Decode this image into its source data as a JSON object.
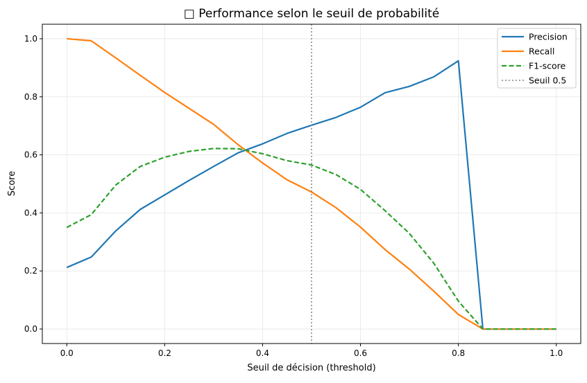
{
  "chart_data": {
    "type": "line",
    "title": "□ Performance selon le seuil de probabilité",
    "xlabel": "Seuil de décision (threshold)",
    "ylabel": "Score",
    "xlim": [
      -0.05,
      1.05
    ],
    "ylim": [
      -0.05,
      1.05
    ],
    "xticks": [
      "0.0",
      "0.2",
      "0.4",
      "0.6",
      "0.8",
      "1.0"
    ],
    "yticks": [
      "0.0",
      "0.2",
      "0.4",
      "0.6",
      "0.8",
      "1.0"
    ],
    "grid": true,
    "legend_position": "top-right",
    "x": [
      0,
      0.05,
      0.1,
      0.15,
      0.2,
      0.25,
      0.3,
      0.35,
      0.4,
      0.45,
      0.5,
      0.55,
      0.6,
      0.65,
      0.7,
      0.75,
      0.8,
      0.85,
      0.9,
      0.95,
      1.0
    ],
    "series": [
      {
        "name": "Precision",
        "color": "#1f77b4",
        "style": "solid",
        "values": [
          0.212,
          0.248,
          0.338,
          0.412,
          0.462,
          0.512,
          0.56,
          0.607,
          0.638,
          0.674,
          0.702,
          0.729,
          0.764,
          0.814,
          0.836,
          0.869,
          0.924,
          0,
          0,
          0,
          0
        ]
      },
      {
        "name": "Recall",
        "color": "#ff7f0e",
        "style": "solid",
        "values": [
          1.0,
          0.993,
          0.934,
          0.874,
          0.815,
          0.76,
          0.705,
          0.635,
          0.572,
          0.514,
          0.472,
          0.418,
          0.351,
          0.274,
          0.206,
          0.13,
          0.05,
          0,
          0,
          0,
          0
        ]
      },
      {
        "name": "F1-score",
        "color": "#2ca02c",
        "style": "dashed",
        "values": [
          0.35,
          0.394,
          0.496,
          0.56,
          0.592,
          0.612,
          0.622,
          0.621,
          0.604,
          0.58,
          0.565,
          0.532,
          0.481,
          0.408,
          0.329,
          0.226,
          0.096,
          0,
          0,
          0,
          0
        ]
      }
    ],
    "vline": {
      "name": "Seuil 0.5",
      "x": 0.5,
      "color": "#808080",
      "style": "dotted"
    }
  }
}
